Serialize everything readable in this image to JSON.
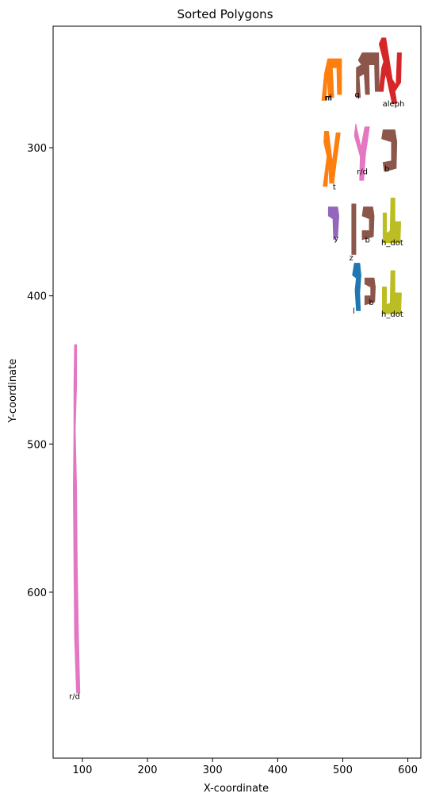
{
  "chart_data": {
    "type": "scatter",
    "title": "Sorted Polygons",
    "xlabel": "X-coordinate",
    "ylabel": "Y-coordinate",
    "xlim": [
      55,
      620
    ],
    "ylim": [
      712,
      218
    ],
    "y_inverted": true,
    "grid": false,
    "xticks": [
      100,
      200,
      300,
      400,
      500,
      600
    ],
    "yticks": [
      300,
      400,
      500,
      600
    ],
    "polygons": [
      {
        "label": "aleph",
        "color": "#d62728",
        "points": [
          [
            560,
            226
          ],
          [
            566,
            226
          ],
          [
            576,
            254
          ],
          [
            582,
            258
          ],
          [
            584,
            236
          ],
          [
            590,
            236
          ],
          [
            589,
            256
          ],
          [
            580,
            262
          ],
          [
            583,
            270
          ],
          [
            576,
            270
          ],
          [
            566,
            250
          ],
          [
            564,
            254
          ],
          [
            562,
            262
          ],
          [
            556,
            262
          ],
          [
            560,
            246
          ],
          [
            563,
            242
          ],
          [
            556,
            230
          ]
        ],
        "label_pos": [
          578,
          272
        ]
      },
      {
        "label": "q",
        "color": "#8c564b",
        "points": [
          [
            530,
            236
          ],
          [
            555,
            236
          ],
          [
            556,
            262
          ],
          [
            550,
            262
          ],
          [
            549,
            244
          ],
          [
            540,
            244
          ],
          [
            541,
            264
          ],
          [
            535,
            264
          ],
          [
            533,
            250
          ],
          [
            525,
            252
          ],
          [
            527,
            266
          ],
          [
            521,
            266
          ],
          [
            521,
            246
          ],
          [
            529,
            244
          ],
          [
            524,
            241
          ]
        ],
        "label_pos": [
          522,
          266
        ]
      },
      {
        "label": "m",
        "color": "#ff7f0e",
        "points": [
          [
            477,
            240
          ],
          [
            498,
            240
          ],
          [
            498,
            264
          ],
          [
            492,
            264
          ],
          [
            491,
            246
          ],
          [
            484,
            246
          ],
          [
            486,
            266
          ],
          [
            478,
            266
          ],
          [
            476,
            250
          ],
          [
            474,
            268
          ],
          [
            468,
            268
          ],
          [
            472,
            250
          ]
        ],
        "label_pos": [
          478,
          268
        ]
      },
      {
        "label": "rf",
        "color": "#ff7f0e",
        "points": [],
        "label_pos": [
          478,
          268
        ]
      },
      {
        "label": "b",
        "color": "#8c564b",
        "points": [
          [
            562,
            288
          ],
          [
            580,
            288
          ],
          [
            583,
            296
          ],
          [
            582,
            314
          ],
          [
            564,
            316
          ],
          [
            562,
            310
          ],
          [
            575,
            309
          ],
          [
            575,
            296
          ],
          [
            560,
            294
          ]
        ],
        "label_pos": [
          568,
          316
        ]
      },
      {
        "label": "r/d",
        "color": "#e377c2",
        "points": [
          [
            520,
            284
          ],
          [
            528,
            300
          ],
          [
            534,
            286
          ],
          [
            541,
            286
          ],
          [
            535,
            304
          ],
          [
            532,
            322
          ],
          [
            526,
            322
          ],
          [
            527,
            306
          ],
          [
            518,
            292
          ]
        ],
        "label_pos": [
          530,
          318
        ]
      },
      {
        "label": "t",
        "color": "#ff7f0e",
        "points": [
          [
            472,
            289
          ],
          [
            478,
            289
          ],
          [
            484,
            310
          ],
          [
            490,
            290
          ],
          [
            496,
            290
          ],
          [
            490,
            310
          ],
          [
            486,
            324
          ],
          [
            480,
            324
          ],
          [
            478,
            310
          ],
          [
            476,
            326
          ],
          [
            470,
            326
          ],
          [
            476,
            306
          ],
          [
            471,
            296
          ]
        ],
        "label_pos": [
          487,
          328
        ]
      },
      {
        "label": "h_dot",
        "color": "#bcbd22",
        "points": [
          [
            574,
            334
          ],
          [
            580,
            334
          ],
          [
            580,
            350
          ],
          [
            589,
            350
          ],
          [
            588,
            364
          ],
          [
            562,
            364
          ],
          [
            562,
            344
          ],
          [
            567,
            344
          ],
          [
            567,
            358
          ],
          [
            573,
            356
          ]
        ],
        "label_pos": [
          576,
          366
        ]
      },
      {
        "label": "b",
        "color": "#8c564b",
        "points": [
          [
            532,
            340
          ],
          [
            546,
            340
          ],
          [
            548,
            346
          ],
          [
            547,
            360
          ],
          [
            530,
            362
          ],
          [
            530,
            356
          ],
          [
            541,
            356
          ],
          [
            541,
            348
          ],
          [
            530,
            346
          ]
        ],
        "label_pos": [
          538,
          364
        ]
      },
      {
        "label": "z",
        "color": "#8c564b",
        "points": [
          [
            514,
            338
          ],
          [
            520,
            338
          ],
          [
            520,
            372
          ],
          [
            514,
            372
          ]
        ],
        "label_pos": [
          513,
          376
        ]
      },
      {
        "label": "y",
        "color": "#9467bd",
        "points": [
          [
            478,
            340
          ],
          [
            492,
            340
          ],
          [
            494,
            346
          ],
          [
            492,
            360
          ],
          [
            486,
            362
          ],
          [
            485,
            348
          ],
          [
            478,
            346
          ]
        ],
        "label_pos": [
          490,
          363
        ]
      },
      {
        "label": "h_dot",
        "color": "#bcbd22",
        "points": [
          [
            574,
            383
          ],
          [
            580,
            383
          ],
          [
            580,
            398
          ],
          [
            590,
            398
          ],
          [
            589,
            412
          ],
          [
            561,
            412
          ],
          [
            561,
            394
          ],
          [
            567,
            394
          ],
          [
            567,
            406
          ],
          [
            573,
            405
          ]
        ],
        "label_pos": [
          576,
          414
        ]
      },
      {
        "label": "b",
        "color": "#8c564b",
        "points": [
          [
            534,
            388
          ],
          [
            548,
            388
          ],
          [
            550,
            394
          ],
          [
            549,
            404
          ],
          [
            534,
            406
          ],
          [
            534,
            400
          ],
          [
            543,
            400
          ],
          [
            543,
            394
          ],
          [
            534,
            392
          ]
        ],
        "label_pos": [
          544,
          406
        ]
      },
      {
        "label": "l",
        "color": "#1f77b4",
        "points": [
          [
            518,
            378
          ],
          [
            526,
            378
          ],
          [
            528,
            386
          ],
          [
            526,
            398
          ],
          [
            527,
            410
          ],
          [
            521,
            410
          ],
          [
            519,
            396
          ],
          [
            521,
            388
          ],
          [
            515,
            386
          ]
        ],
        "label_pos": [
          517,
          412
        ]
      },
      {
        "label": "r/d",
        "color": "#e377c2",
        "points": [
          [
            88,
            433
          ],
          [
            91,
            433
          ],
          [
            91,
            460
          ],
          [
            89,
            490
          ],
          [
            91,
            530
          ],
          [
            92,
            580
          ],
          [
            94,
            630
          ],
          [
            96,
            668
          ],
          [
            91,
            668
          ],
          [
            88,
            630
          ],
          [
            87,
            580
          ],
          [
            86,
            530
          ],
          [
            87,
            490
          ],
          [
            87,
            460
          ]
        ],
        "label_pos": [
          88,
          672
        ]
      }
    ]
  }
}
